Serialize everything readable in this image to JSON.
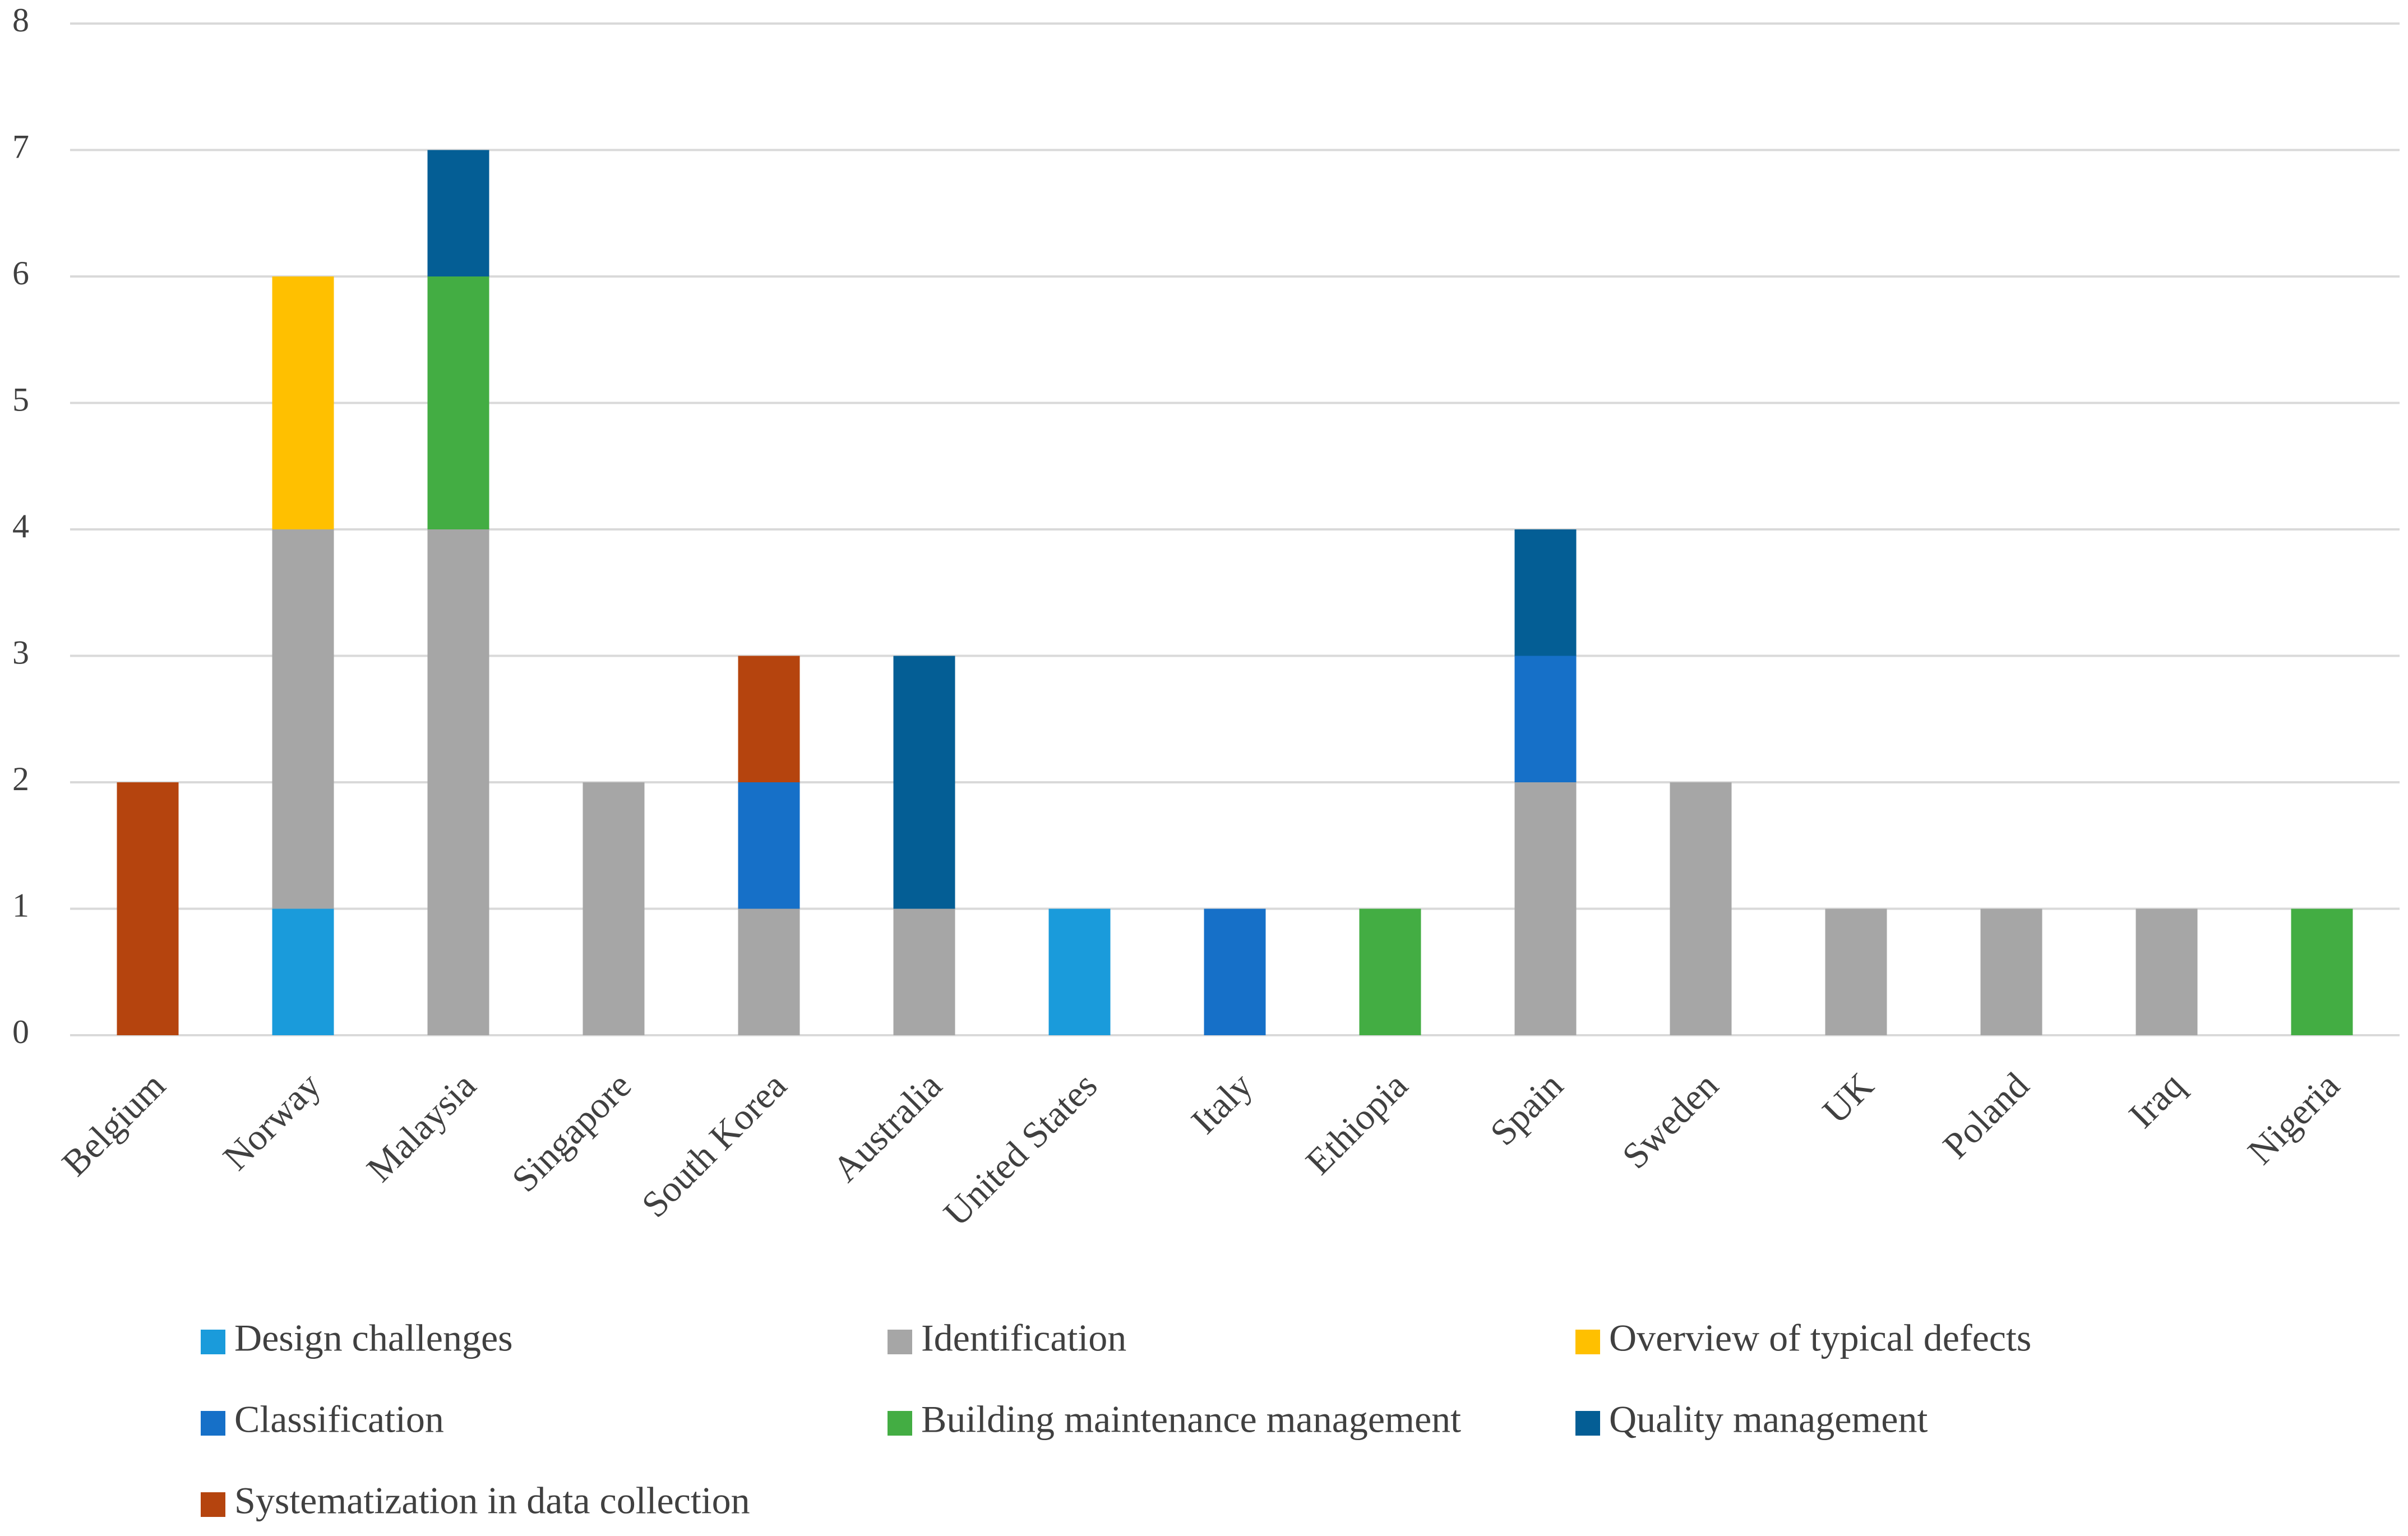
{
  "chart_data": {
    "type": "bar",
    "stacked": true,
    "title": "",
    "xlabel": "",
    "ylabel": "",
    "ylim": [
      0,
      8
    ],
    "yticks": [
      0,
      1,
      2,
      3,
      4,
      5,
      6,
      7,
      8
    ],
    "grid": true,
    "legend_position": "bottom",
    "categories": [
      "Belgium",
      "Norway",
      "Malaysia",
      "Singapore",
      "South Korea",
      "Australia",
      "United States",
      "Italy",
      "Ethiopia",
      "Spain",
      "Sweden",
      "UK",
      "Poland",
      "Iraq",
      "Nigeria"
    ],
    "series": [
      {
        "name": "Design challenges",
        "color": "#1a9bdb",
        "values": [
          0,
          1,
          0,
          0,
          0,
          0,
          1,
          0,
          0,
          0,
          0,
          0,
          0,
          0,
          0
        ]
      },
      {
        "name": "Identification",
        "color": "#a6a6a6",
        "values": [
          0,
          3,
          4,
          2,
          1,
          1,
          0,
          0,
          0,
          2,
          2,
          1,
          1,
          1,
          0
        ]
      },
      {
        "name": "Overview of typical defects",
        "color": "#ffc000",
        "values": [
          0,
          2,
          0,
          0,
          0,
          0,
          0,
          0,
          0,
          0,
          0,
          0,
          0,
          0,
          0
        ]
      },
      {
        "name": "Classification",
        "color": "#1670c8",
        "values": [
          0,
          0,
          0,
          0,
          1,
          0,
          0,
          1,
          0,
          1,
          0,
          0,
          0,
          0,
          0
        ]
      },
      {
        "name": "Building maintenance management",
        "color": "#43ad43",
        "values": [
          0,
          0,
          2,
          0,
          0,
          0,
          0,
          0,
          1,
          0,
          0,
          0,
          0,
          0,
          1
        ]
      },
      {
        "name": "Quality management",
        "color": "#045e95",
        "values": [
          0,
          0,
          1,
          0,
          0,
          2,
          0,
          0,
          0,
          1,
          0,
          0,
          0,
          0,
          0
        ]
      },
      {
        "name": "Systematization in data collection",
        "color": "#b5440e",
        "values": [
          2,
          0,
          0,
          0,
          1,
          0,
          0,
          0,
          0,
          0,
          0,
          0,
          0,
          0,
          0
        ]
      }
    ]
  }
}
